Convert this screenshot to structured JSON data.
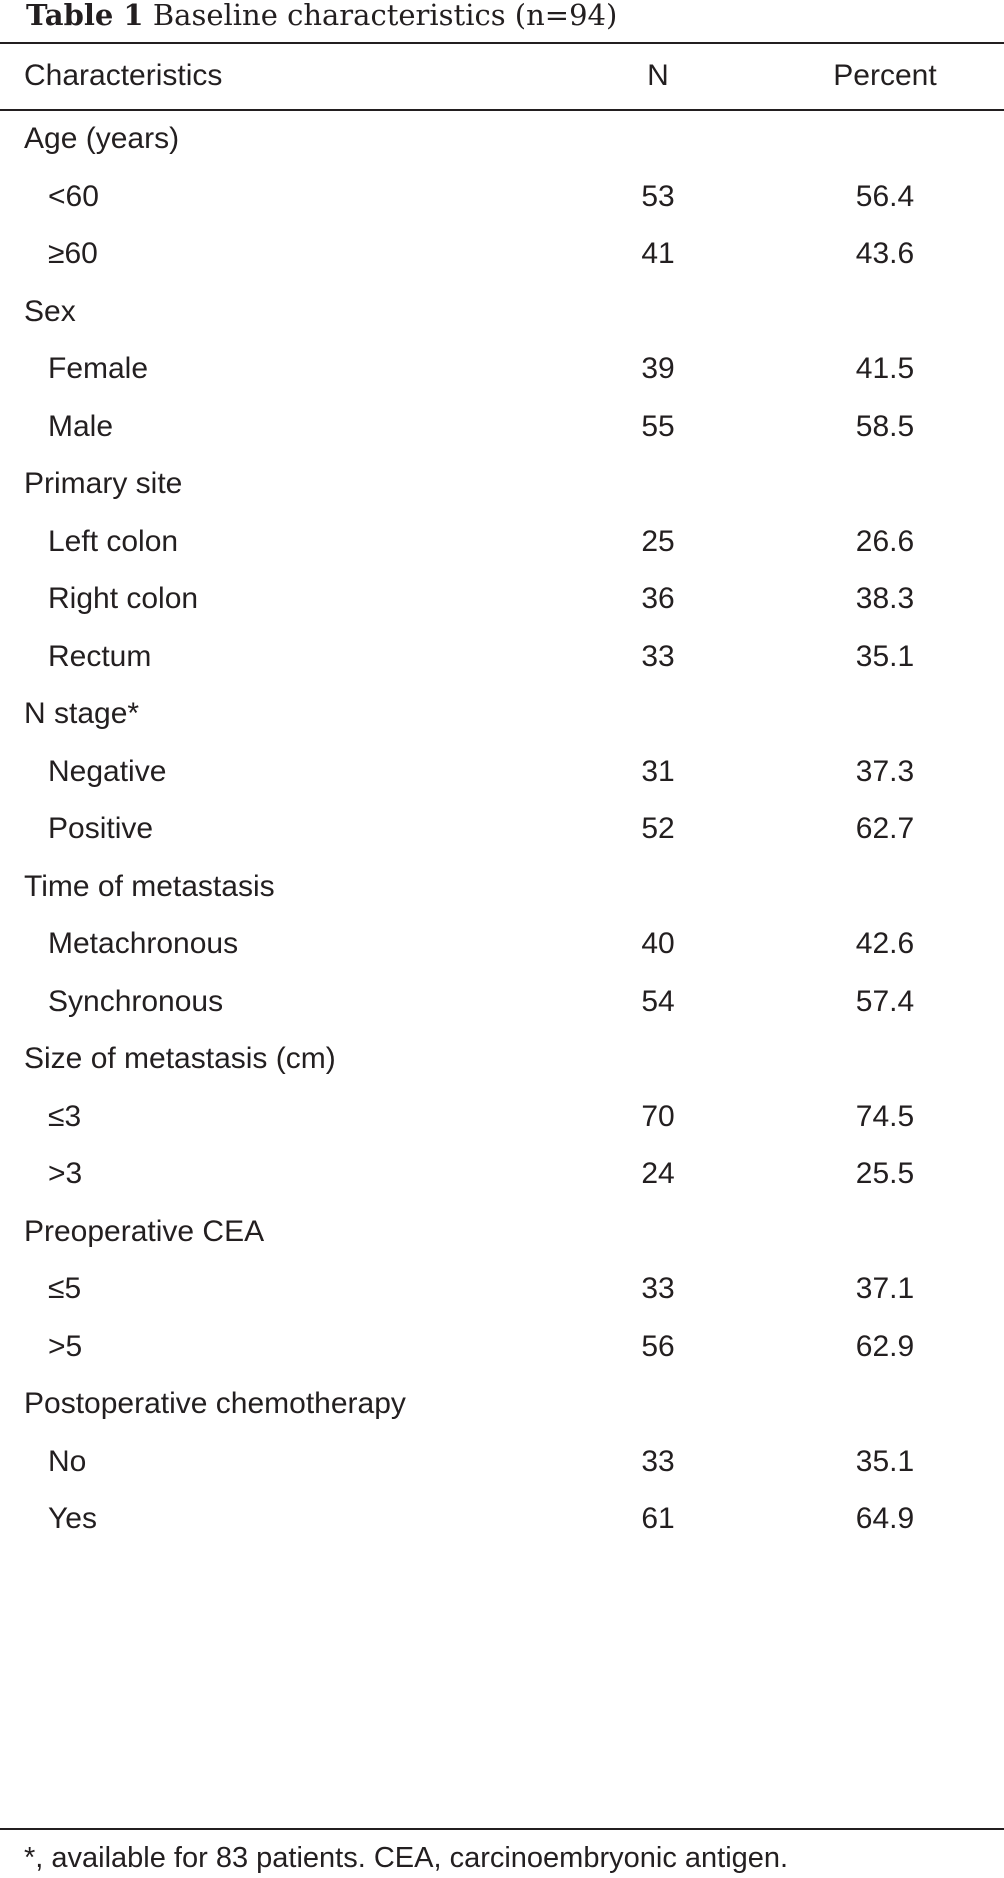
{
  "table": {
    "caption_label": "Table 1",
    "caption_text": "Baseline characteristics (n=94)",
    "headers": {
      "characteristics": "Characteristics",
      "n": "N",
      "percent": "Percent"
    },
    "rows": [
      {
        "label": "Age (years)",
        "n": "",
        "percent": "",
        "indent": false
      },
      {
        "label": "<60",
        "n": "53",
        "percent": "56.4",
        "indent": true
      },
      {
        "label": "≥60",
        "n": "41",
        "percent": "43.6",
        "indent": true
      },
      {
        "label": "Sex",
        "n": "",
        "percent": "",
        "indent": false
      },
      {
        "label": "Female",
        "n": "39",
        "percent": "41.5",
        "indent": true
      },
      {
        "label": "Male",
        "n": "55",
        "percent": "58.5",
        "indent": true
      },
      {
        "label": "Primary site",
        "n": "",
        "percent": "",
        "indent": false
      },
      {
        "label": "Left colon",
        "n": "25",
        "percent": "26.6",
        "indent": true
      },
      {
        "label": "Right colon",
        "n": "36",
        "percent": "38.3",
        "indent": true
      },
      {
        "label": "Rectum",
        "n": "33",
        "percent": "35.1",
        "indent": true
      },
      {
        "label": "N stage*",
        "n": "",
        "percent": "",
        "indent": false
      },
      {
        "label": "Negative",
        "n": "31",
        "percent": "37.3",
        "indent": true
      },
      {
        "label": "Positive",
        "n": "52",
        "percent": "62.7",
        "indent": true
      },
      {
        "label": "Time of metastasis",
        "n": "",
        "percent": "",
        "indent": false
      },
      {
        "label": "Metachronous",
        "n": "40",
        "percent": "42.6",
        "indent": true
      },
      {
        "label": "Synchronous",
        "n": "54",
        "percent": "57.4",
        "indent": true
      },
      {
        "label": "Size of metastasis (cm)",
        "n": "",
        "percent": "",
        "indent": false
      },
      {
        "label": "≤3",
        "n": "70",
        "percent": "74.5",
        "indent": true
      },
      {
        "label": ">3",
        "n": "24",
        "percent": "25.5",
        "indent": true
      },
      {
        "label": "Preoperative CEA",
        "n": "",
        "percent": "",
        "indent": false
      },
      {
        "label": "≤5",
        "n": "33",
        "percent": "37.1",
        "indent": true
      },
      {
        "label": ">5",
        "n": "56",
        "percent": "62.9",
        "indent": true
      },
      {
        "label": "Postoperative chemotherapy",
        "n": "",
        "percent": "",
        "indent": false
      },
      {
        "label": "No",
        "n": "33",
        "percent": "35.1",
        "indent": true
      },
      {
        "label": "Yes",
        "n": "61",
        "percent": "64.9",
        "indent": true
      }
    ],
    "footnote": "*, available for 83 patients. CEA, carcinoembryonic antigen."
  }
}
